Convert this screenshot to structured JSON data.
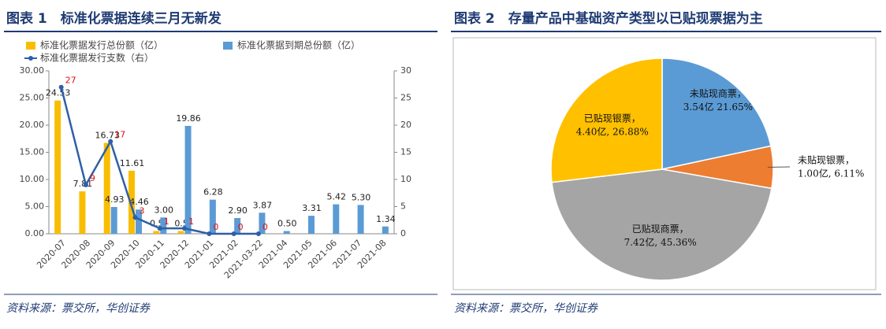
{
  "chart_data": [
    {
      "type": "bar",
      "title": "图表 1　标准化票据连续三月无新发",
      "source": "资料来源：票交所，华创证券",
      "categories": [
        "2020-07",
        "2020-08",
        "2020-09",
        "2020-10",
        "2020-11",
        "2020-12",
        "2021-01",
        "2021-02",
        "2021-03-22",
        "2021-04",
        "2021-05",
        "2021-06",
        "2021-07",
        "2021-08"
      ],
      "series": [
        {
          "name": "标准化票据发行总份额（亿）",
          "color": "#f9bd00",
          "values": [
            24.53,
            7.81,
            16.73,
            11.61,
            0.5,
            0.5,
            null,
            null,
            null,
            null,
            null,
            null,
            null,
            null
          ]
        },
        {
          "name": "标准化票据到期总份额（亿）",
          "color": "#5b9bd5",
          "values": [
            null,
            null,
            4.93,
            4.46,
            3,
            19.86,
            6.28,
            2.9,
            3.87,
            0.5,
            3.31,
            5.42,
            5.3,
            1.34
          ],
          "value_labels": [
            null,
            null,
            "4.93",
            "4.46",
            "3.00",
            "19.86",
            "6.28",
            "2.90",
            "3.87",
            "0.50",
            "3.31",
            "5.42",
            "5.30",
            "1.34"
          ]
        },
        {
          "name": "标准化票据发行支数（右）",
          "color": "#2f5fa7",
          "type": "line",
          "axis": "y2",
          "values": [
            27,
            9,
            17,
            3,
            1,
            1,
            0,
            0,
            0,
            null,
            null,
            null,
            null,
            null
          ]
        }
      ],
      "ylim": [
        0,
        30
      ],
      "yticks": [
        {
          "value": 0,
          "label": "0.00"
        },
        {
          "value": 5,
          "label": "5.00"
        },
        {
          "value": 10,
          "label": "10.00"
        },
        {
          "value": 15,
          "label": "15.00"
        },
        {
          "value": 20,
          "label": "20.00"
        },
        {
          "value": 25,
          "label": "25.00"
        },
        {
          "value": 30,
          "label": "30.00"
        }
      ],
      "y2lim": [
        0,
        30
      ],
      "y2ticks": [
        0,
        5,
        10,
        15,
        20,
        25,
        30
      ]
    },
    {
      "type": "pie",
      "title": "图表 2　存量产品中基础资产类型以已贴现票据为主",
      "source": "资料来源：票交所，华创证券",
      "categories": [
        "未贴现商票，",
        "未贴现银票，",
        "已贴现商票，",
        "已贴现银票，"
      ],
      "values": [
        21.65,
        6.11,
        45.36,
        26.88
      ],
      "value_labels": [
        "3.54亿 21.65%",
        "1.00亿, 6.11%",
        "7.42亿, 45.36%",
        "4.40亿, 26.88%"
      ],
      "colors": [
        "#5b9bd5",
        "#ed7d31",
        "#a5a5a5",
        "#ffc000"
      ]
    }
  ]
}
